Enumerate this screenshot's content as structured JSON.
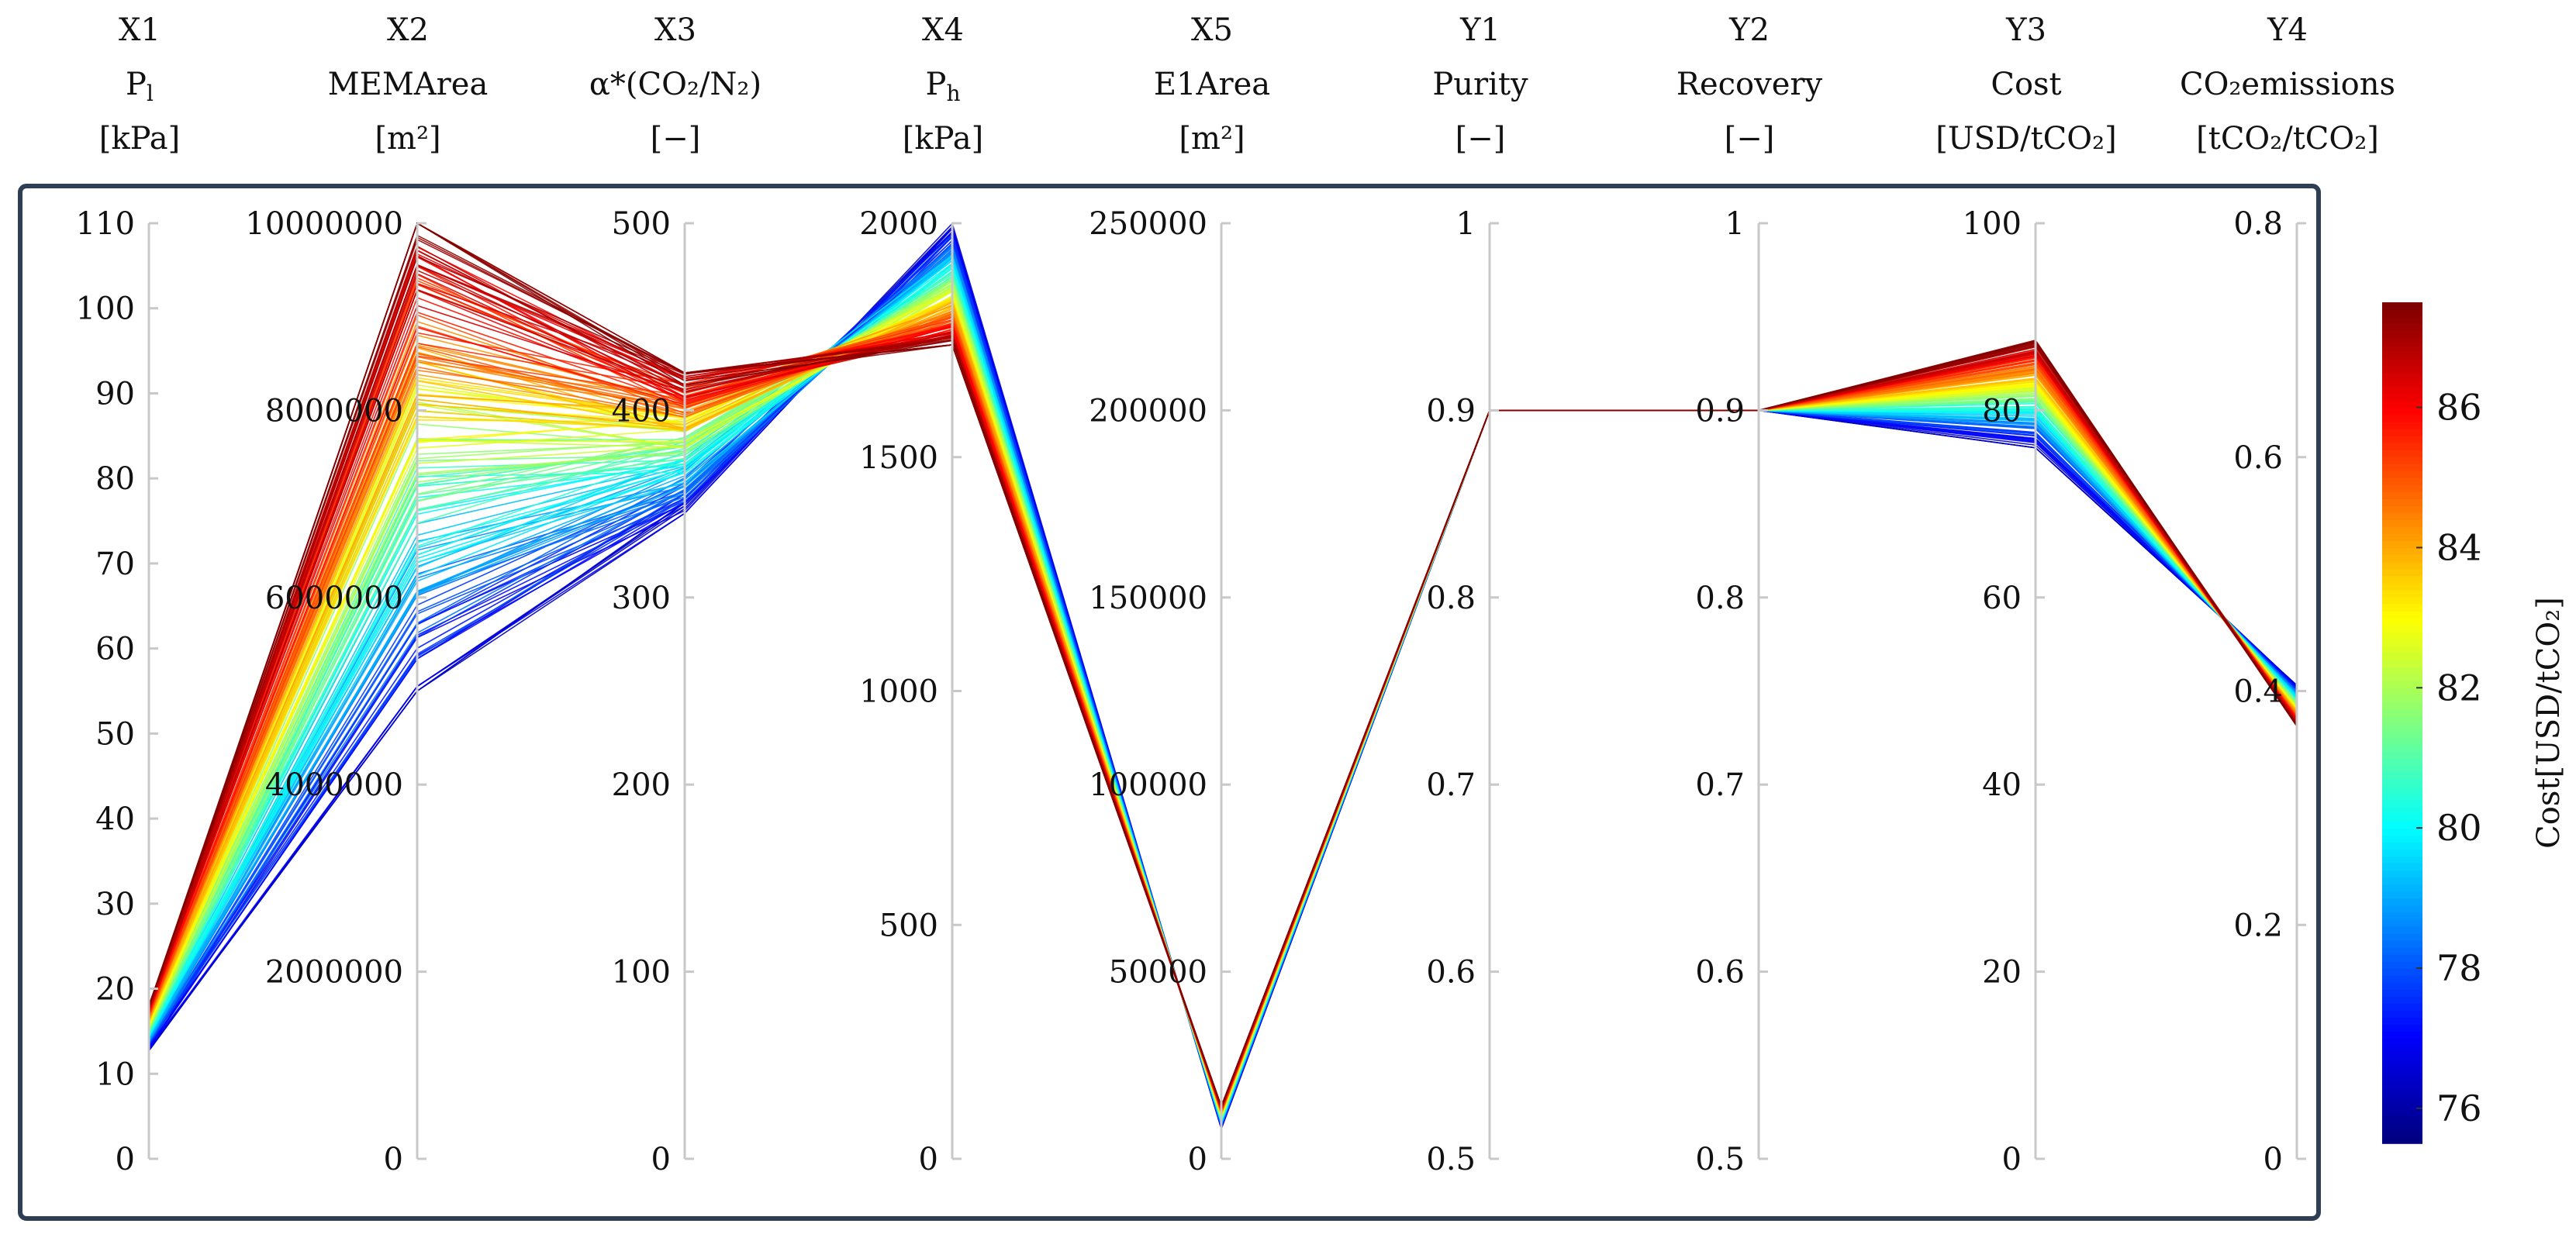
{
  "chart_data": {
    "type": "parallel_coordinates",
    "title": "",
    "line_count": 160,
    "axes": [
      {
        "id": "X1",
        "name": "P",
        "sub": "l",
        "unit": "[kPa]",
        "range": [
          0,
          110
        ],
        "ticks": [
          "0",
          "10",
          "20",
          "30",
          "40",
          "50",
          "60",
          "70",
          "80",
          "90",
          "100",
          "110"
        ],
        "observed_range": [
          12.7,
          18.0
        ],
        "direction": "increasing_with_cost"
      },
      {
        "id": "X2",
        "name": "MEMArea",
        "sub": "",
        "unit": "[m²]",
        "range": [
          0,
          10000000
        ],
        "ticks": [
          "0",
          "2000000",
          "4000000",
          "6000000",
          "8000000",
          "10000000"
        ],
        "observed_range": [
          5000000,
          10000000
        ],
        "direction": "increasing_with_cost"
      },
      {
        "id": "X3",
        "name": "α*(CO₂/N₂)",
        "sub": "",
        "unit": "[−]",
        "range": [
          0,
          500
        ],
        "ticks": [
          "0",
          "100",
          "200",
          "300",
          "400",
          "500"
        ],
        "observed_range": [
          345,
          420
        ],
        "direction": "increasing_with_cost"
      },
      {
        "id": "X4",
        "name": "P",
        "sub": "h",
        "unit": "[kPa]",
        "range": [
          0,
          2000
        ],
        "ticks": [
          "0",
          "500",
          "1000",
          "1500",
          "2000"
        ],
        "observed_range": [
          1740,
          2000
        ],
        "direction": "decreasing_with_cost"
      },
      {
        "id": "X5",
        "name": "E1Area",
        "sub": "",
        "unit": "[m²]",
        "range": [
          0,
          250000
        ],
        "ticks": [
          "0",
          "50000",
          "100000",
          "150000",
          "200000",
          "250000"
        ],
        "observed_range": [
          8000,
          14000
        ],
        "direction": "increasing_with_cost"
      },
      {
        "id": "Y1",
        "name": "Purity",
        "sub": "",
        "unit": "[−]",
        "range": [
          0.5,
          1
        ],
        "ticks": [
          "0.5",
          "0.6",
          "0.7",
          "0.8",
          "0.9",
          "1"
        ],
        "observed_range": [
          0.9,
          0.9
        ],
        "direction": "constant"
      },
      {
        "id": "Y2",
        "name": "Recovery",
        "sub": "",
        "unit": "[−]",
        "range": [
          0.5,
          1
        ],
        "ticks": [
          "0.5",
          "0.6",
          "0.7",
          "0.8",
          "0.9",
          "1"
        ],
        "observed_range": [
          0.9,
          0.9
        ],
        "direction": "constant"
      },
      {
        "id": "Y3",
        "name": "Cost",
        "sub": "",
        "unit": "[USD/tCO₂]",
        "range": [
          0,
          100
        ],
        "ticks": [
          "0",
          "20",
          "40",
          "60",
          "80",
          "100"
        ],
        "observed_range": [
          76,
          87.5
        ],
        "direction": "increasing_with_cost"
      },
      {
        "id": "Y4",
        "name": "CO₂emissions",
        "sub": "",
        "unit": "[tCO₂/tCO₂]",
        "range": [
          0,
          0.8
        ],
        "ticks": [
          "0",
          "0.2",
          "0.4",
          "0.6",
          "0.8"
        ],
        "observed_range": [
          0.37,
          0.405
        ],
        "direction": "decreasing_with_cost"
      }
    ],
    "colorbar": {
      "label": "Cost[USD/tCO₂]",
      "range": [
        75.5,
        87.5
      ],
      "ticks": [
        "76",
        "78",
        "80",
        "82",
        "84",
        "86"
      ],
      "colormap": "jet"
    }
  }
}
